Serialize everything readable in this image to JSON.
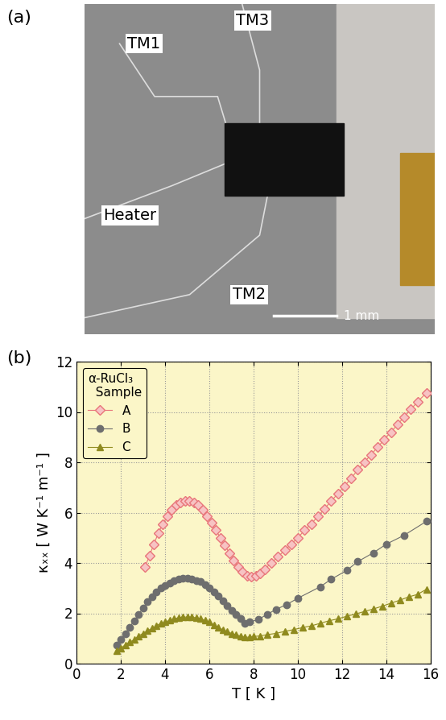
{
  "panel_labels": [
    "(a)",
    "(b)"
  ],
  "photo": {
    "labels": [
      "TM1",
      "TM3",
      "Heater",
      "TM2"
    ],
    "scale_bar": "1 mm"
  },
  "chart_data": {
    "type": "line",
    "x_label": "T [ K ]",
    "y_label": "κₓₓ [ W K⁻¹ m⁻¹ ]",
    "legend_title": "α-RuCl₃\n  Sample",
    "legend": "upper left",
    "grid": true,
    "xlim": [
      0,
      16
    ],
    "xticks": [
      0,
      2,
      4,
      6,
      8,
      10,
      12,
      14,
      16
    ],
    "ylim": [
      0,
      12
    ],
    "yticks": [
      0,
      2,
      4,
      6,
      8,
      10,
      12
    ],
    "series": [
      {
        "name": "A",
        "color": "#e8757a",
        "marker": "diamond",
        "line_style": "solid",
        "x": [
          3.1,
          3.3,
          3.5,
          3.7,
          3.9,
          4.1,
          4.3,
          4.5,
          4.7,
          4.9,
          5.1,
          5.3,
          5.5,
          5.7,
          5.9,
          6.1,
          6.3,
          6.5,
          6.7,
          6.9,
          7.1,
          7.3,
          7.5,
          7.7,
          7.9,
          8.1,
          8.3,
          8.5,
          8.8,
          9.1,
          9.4,
          9.7,
          10.0,
          10.3,
          10.6,
          10.9,
          11.2,
          11.5,
          11.8,
          12.1,
          12.4,
          12.7,
          13.0,
          13.3,
          13.6,
          13.9,
          14.2,
          14.5,
          14.8,
          15.1,
          15.4,
          15.8
        ],
        "values": [
          3.85,
          4.3,
          4.75,
          5.2,
          5.55,
          5.85,
          6.1,
          6.3,
          6.4,
          6.45,
          6.45,
          6.4,
          6.3,
          6.1,
          5.85,
          5.6,
          5.3,
          5.0,
          4.7,
          4.4,
          4.1,
          3.85,
          3.65,
          3.5,
          3.45,
          3.5,
          3.6,
          3.75,
          4.0,
          4.25,
          4.5,
          4.75,
          5.0,
          5.3,
          5.55,
          5.85,
          6.15,
          6.45,
          6.75,
          7.05,
          7.35,
          7.7,
          8.0,
          8.3,
          8.6,
          8.9,
          9.2,
          9.5,
          9.8,
          10.1,
          10.4,
          10.75
        ]
      },
      {
        "name": "B",
        "color": "#6e6e6e",
        "marker": "circle",
        "line_style": "solid",
        "x": [
          1.8,
          2.0,
          2.2,
          2.4,
          2.6,
          2.8,
          3.0,
          3.2,
          3.4,
          3.6,
          3.8,
          4.0,
          4.2,
          4.4,
          4.6,
          4.8,
          5.0,
          5.2,
          5.4,
          5.6,
          5.8,
          6.0,
          6.2,
          6.4,
          6.6,
          6.8,
          7.0,
          7.2,
          7.4,
          7.6,
          7.8,
          8.2,
          8.6,
          9.0,
          9.5,
          10.0,
          11.0,
          11.5,
          12.2,
          12.7,
          13.4,
          14.0,
          14.8,
          15.8
        ],
        "values": [
          0.75,
          0.95,
          1.2,
          1.45,
          1.7,
          1.95,
          2.2,
          2.45,
          2.65,
          2.85,
          3.0,
          3.1,
          3.2,
          3.3,
          3.35,
          3.4,
          3.4,
          3.35,
          3.3,
          3.25,
          3.15,
          3.0,
          2.85,
          2.7,
          2.5,
          2.3,
          2.1,
          1.95,
          1.8,
          1.6,
          1.65,
          1.75,
          1.95,
          2.15,
          2.35,
          2.6,
          3.05,
          3.35,
          3.7,
          4.05,
          4.4,
          4.75,
          5.1,
          5.65
        ]
      },
      {
        "name": "C",
        "color": "#8f8a1e",
        "marker": "triangle",
        "line_style": "solid",
        "x": [
          1.8,
          2.0,
          2.2,
          2.4,
          2.6,
          2.8,
          3.0,
          3.2,
          3.4,
          3.6,
          3.8,
          4.0,
          4.2,
          4.4,
          4.6,
          4.8,
          5.0,
          5.2,
          5.4,
          5.6,
          5.8,
          6.0,
          6.2,
          6.4,
          6.6,
          6.8,
          7.0,
          7.2,
          7.4,
          7.6,
          7.8,
          8.0,
          8.3,
          8.6,
          9.0,
          9.4,
          9.8,
          10.2,
          10.6,
          11.0,
          11.4,
          11.8,
          12.2,
          12.6,
          13.0,
          13.4,
          13.8,
          14.2,
          14.6,
          15.0,
          15.4,
          15.8
        ],
        "values": [
          0.5,
          0.6,
          0.75,
          0.85,
          0.95,
          1.1,
          1.2,
          1.3,
          1.4,
          1.5,
          1.6,
          1.65,
          1.72,
          1.78,
          1.82,
          1.85,
          1.85,
          1.85,
          1.82,
          1.78,
          1.72,
          1.65,
          1.55,
          1.45,
          1.35,
          1.28,
          1.2,
          1.15,
          1.1,
          1.05,
          1.05,
          1.08,
          1.1,
          1.15,
          1.2,
          1.28,
          1.35,
          1.43,
          1.5,
          1.6,
          1.7,
          1.78,
          1.88,
          1.97,
          2.07,
          2.17,
          2.28,
          2.4,
          2.52,
          2.65,
          2.75,
          2.95
        ]
      }
    ]
  }
}
